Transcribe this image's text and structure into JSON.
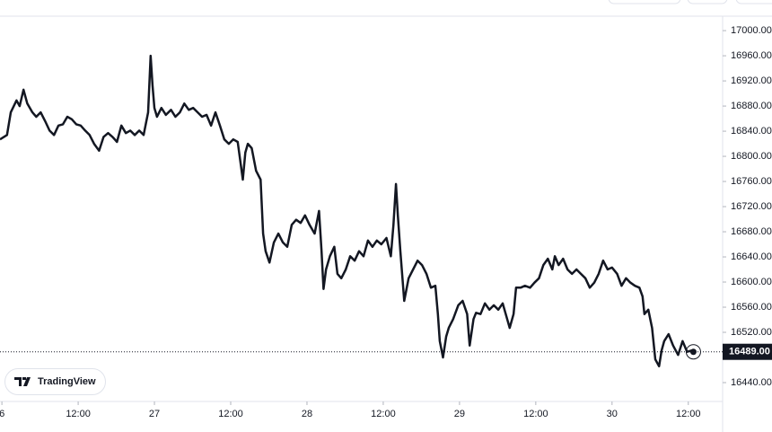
{
  "watermark": "TradingView",
  "chart_data": {
    "type": "line",
    "x": [
      -0.3,
      0.8,
      1.4,
      2.3,
      2.8,
      3.4,
      4.0,
      4.8,
      5.4,
      6.1,
      6.8,
      7.5,
      8.2,
      8.9,
      9.6,
      10.3,
      11.0,
      11.7,
      12.4,
      13.1,
      13.8,
      14.5,
      15.3,
      16.0,
      16.7,
      17.4,
      18.1,
      18.8,
      19.5,
      20.2,
      20.9,
      21.6,
      22.3,
      23.0,
      23.4,
      23.7,
      24.0,
      24.4,
      25.1,
      25.8,
      26.6,
      27.3,
      28.0,
      28.7,
      29.4,
      30.1,
      30.8,
      31.5,
      32.2,
      32.9,
      33.6,
      34.3,
      35.0,
      35.7,
      36.4,
      37.1,
      37.9,
      38.3,
      38.7,
      39.3,
      40.0,
      40.7,
      41.1,
      41.5,
      42.1,
      42.8,
      43.5,
      44.2,
      44.9,
      45.6,
      46.3,
      47.0,
      47.7,
      48.4,
      49.2,
      49.9,
      50.3,
      50.6,
      51.0,
      51.6,
      52.3,
      52.8,
      53.4,
      54.1,
      54.8,
      55.5,
      56.2,
      56.9,
      57.6,
      58.3,
      59.0,
      59.7,
      60.5,
      61.2,
      61.6,
      62.0,
      62.3,
      62.7,
      63.3,
      64.0,
      64.7,
      65.4,
      66.1,
      66.8,
      67.5,
      68.2,
      68.6,
      68.9,
      69.4,
      69.9,
      70.3,
      71.0,
      71.8,
      72.5,
      73.2,
      73.6,
      74.2,
      74.6,
      75.3,
      76.0,
      76.7,
      77.4,
      78.1,
      78.8,
      79.5,
      79.9,
      80.5,
      80.9,
      81.6,
      82.3,
      83.1,
      83.8,
      84.5,
      85.2,
      85.9,
      86.6,
      87.0,
      87.6,
      88.3,
      89.0,
      89.7,
      90.4,
      91.1,
      91.8,
      92.5,
      93.2,
      93.9,
      94.6,
      95.3,
      96.0,
      96.8,
      97.5,
      98.2,
      98.9,
      99.6,
      100.3,
      100.8,
      101.1,
      101.7,
      102.3,
      102.8,
      103.4,
      103.8,
      104.2,
      104.9,
      105.6,
      106.4,
      107.1,
      107.8,
      108.5,
      108.8
    ],
    "series": [
      {
        "color": "#131722",
        "values": [
          16827,
          16834,
          16870,
          16889,
          16880,
          16906,
          16884,
          16870,
          16863,
          16870,
          16856,
          16841,
          16834,
          16849,
          16851,
          16863,
          16859,
          16851,
          16849,
          16841,
          16834,
          16820,
          16809,
          16831,
          16837,
          16831,
          16823,
          16849,
          16837,
          16841,
          16834,
          16841,
          16834,
          16870,
          16960,
          16913,
          16877,
          16863,
          16877,
          16866,
          16874,
          16863,
          16870,
          16884,
          16874,
          16877,
          16870,
          16863,
          16866,
          16849,
          16870,
          16849,
          16827,
          16820,
          16827,
          16823,
          16763,
          16806,
          16820,
          16813,
          16777,
          16763,
          16677,
          16649,
          16631,
          16663,
          16677,
          16663,
          16656,
          16691,
          16699,
          16694,
          16706,
          16691,
          16677,
          16713,
          16649,
          16589,
          16620,
          16641,
          16656,
          16613,
          16606,
          16620,
          16641,
          16634,
          16649,
          16641,
          16666,
          16656,
          16666,
          16660,
          16670,
          16641,
          16691,
          16756,
          16706,
          16649,
          16570,
          16606,
          16620,
          16634,
          16627,
          16613,
          16591,
          16594,
          16549,
          16506,
          16480,
          16513,
          16527,
          16541,
          16563,
          16570,
          16549,
          16499,
          16541,
          16551,
          16549,
          16566,
          16556,
          16563,
          16556,
          16566,
          16541,
          16527,
          16549,
          16591,
          16591,
          16594,
          16591,
          16599,
          16606,
          16627,
          16637,
          16620,
          16641,
          16627,
          16637,
          16620,
          16613,
          16620,
          16613,
          16606,
          16591,
          16599,
          16613,
          16634,
          16620,
          16623,
          16613,
          16594,
          16606,
          16599,
          16594,
          16591,
          16577,
          16549,
          16556,
          16527,
          16477,
          16466,
          16491,
          16506,
          16517,
          16499,
          16484,
          16506,
          16489,
          16491,
          16489
        ]
      }
    ],
    "xlim": [
      -0.3,
      113.4
    ],
    "xticks": [
      {
        "value": 0,
        "label": "6"
      },
      {
        "value": 12,
        "label": "12:00"
      },
      {
        "value": 24,
        "label": "27"
      },
      {
        "value": 36,
        "label": "12:00"
      },
      {
        "value": 48,
        "label": "28"
      },
      {
        "value": 60,
        "label": "12:00"
      },
      {
        "value": 72,
        "label": "29"
      },
      {
        "value": 84,
        "label": "12:00"
      },
      {
        "value": 96,
        "label": "30"
      },
      {
        "value": 108,
        "label": "12:00"
      }
    ],
    "ylim": [
      16410,
      17023
    ],
    "yticks": [
      {
        "value": 16440,
        "label": "16440.00"
      },
      {
        "value": 16520,
        "label": "16520.00"
      },
      {
        "value": 16560,
        "label": "16560.00"
      },
      {
        "value": 16600,
        "label": "16600.00"
      },
      {
        "value": 16640,
        "label": "16640.00"
      },
      {
        "value": 16680,
        "label": "16680.00"
      },
      {
        "value": 16720,
        "label": "16720.00"
      },
      {
        "value": 16760,
        "label": "16760.00"
      },
      {
        "value": 16800,
        "label": "16800.00"
      },
      {
        "value": 16840,
        "label": "16840.00"
      },
      {
        "value": 16880,
        "label": "16880.00"
      },
      {
        "value": 16920,
        "label": "16920.00"
      },
      {
        "value": 16960,
        "label": "16960.00"
      },
      {
        "value": 17000,
        "label": "17000.00"
      }
    ],
    "current_price": {
      "value": 16489,
      "label": "16489.00"
    }
  }
}
